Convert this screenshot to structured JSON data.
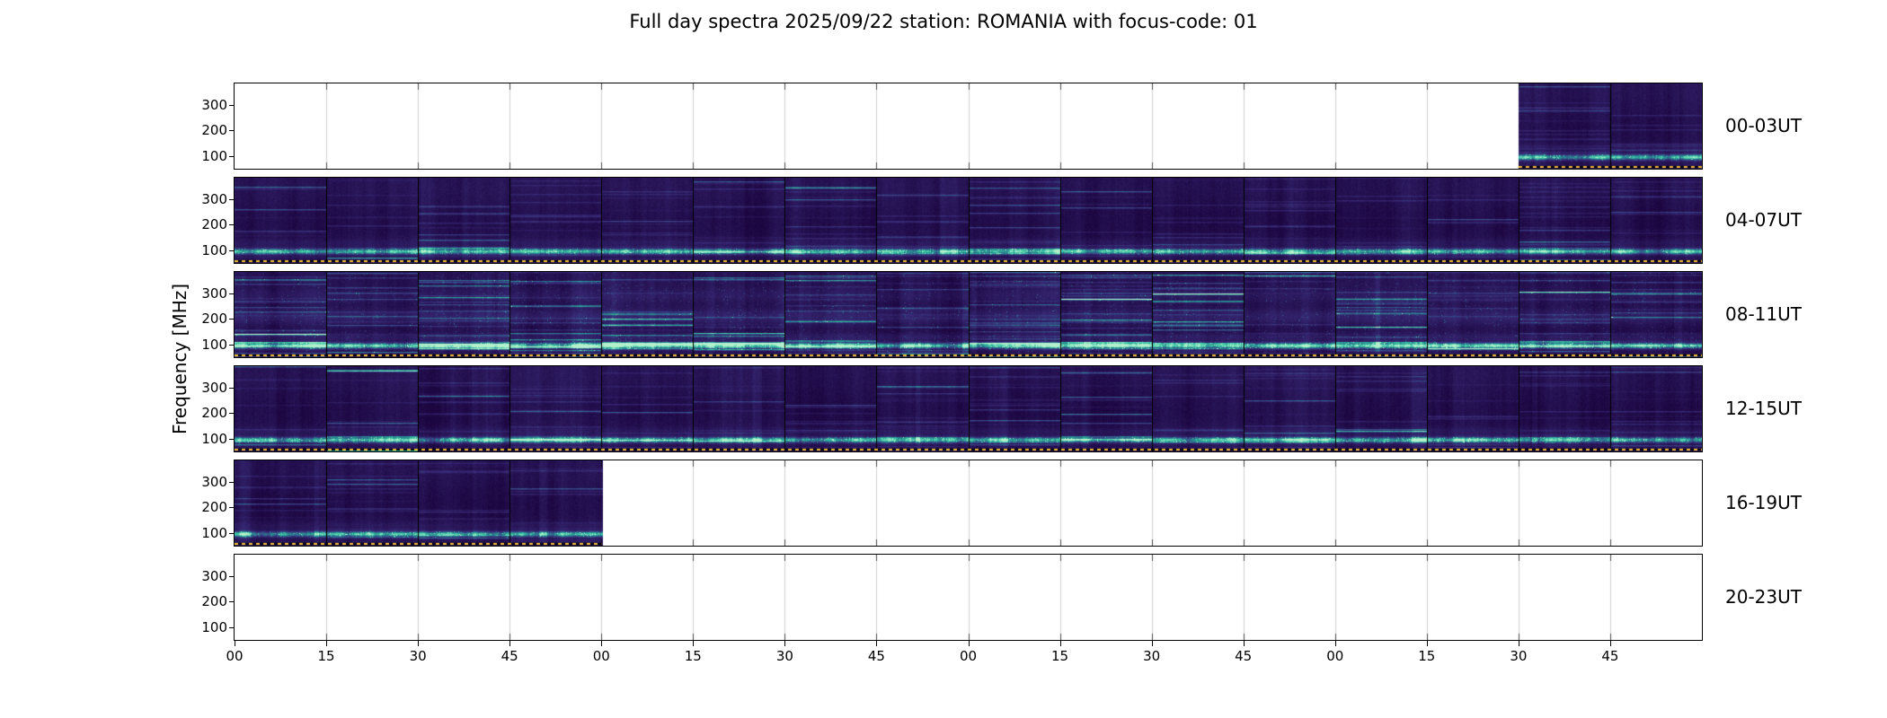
{
  "chart_data": {
    "type": "heatmap",
    "title": "Full day spectra 2025/09/22 station: ROMANIA with focus-code: 01",
    "date": "2025/09/22",
    "station": "ROMANIA",
    "focus_code": "01",
    "ylabel": "Frequency [MHz]",
    "xlabel": "",
    "grid": false,
    "legend": null,
    "freq_tick_labels": [
      "300",
      "200",
      "100"
    ],
    "x_tick_labels": [
      "00",
      "15",
      "30",
      "45",
      "00",
      "15",
      "30",
      "45",
      "00",
      "15",
      "30",
      "45",
      "00",
      "15",
      "30",
      "45"
    ],
    "segments_per_row": 16,
    "minutes_per_segment": 15,
    "rows": [
      {
        "label": "00-03UT",
        "filled_segments": [
          14,
          15
        ],
        "activity": 0.5
      },
      {
        "label": "04-07UT",
        "filled_segments": [
          0,
          1,
          2,
          3,
          4,
          5,
          6,
          7,
          8,
          9,
          10,
          11,
          12,
          13,
          14,
          15
        ],
        "activity": 0.55
      },
      {
        "label": "08-11UT",
        "filled_segments": [
          0,
          1,
          2,
          3,
          4,
          5,
          6,
          7,
          8,
          9,
          10,
          11,
          12,
          13,
          14,
          15
        ],
        "activity": 0.9
      },
      {
        "label": "12-15UT",
        "filled_segments": [
          0,
          1,
          2,
          3,
          4,
          5,
          6,
          7,
          8,
          9,
          10,
          11,
          12,
          13,
          14,
          15
        ],
        "activity": 0.6
      },
      {
        "label": "16-19UT",
        "filled_segments": [
          0,
          1,
          2,
          3
        ],
        "activity": 0.55
      },
      {
        "label": "20-23UT",
        "filled_segments": [],
        "activity": 0
      }
    ],
    "colors": {
      "spectrogram_dark": "#24114f",
      "spectrogram_teal": "#2fae9e",
      "bottom_marker_line": "#f2c12e",
      "axes": "#000000",
      "background": "#ffffff"
    }
  }
}
